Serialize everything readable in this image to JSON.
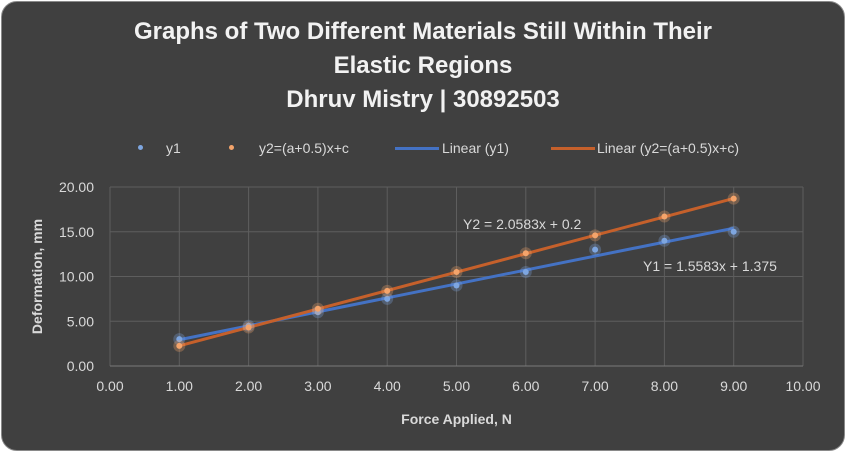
{
  "chart_data": {
    "type": "scatter",
    "title": [
      "Graphs of Two Different Materials Still Within Their",
      "Elastic Regions",
      "Dhruv Mistry | 30892503"
    ],
    "xlabel": "Force Applied, N",
    "ylabel": "Deformation, mm",
    "xlim": [
      0,
      10
    ],
    "ylim": [
      0,
      20
    ],
    "xticks": [
      "0.00",
      "1.00",
      "2.00",
      "3.00",
      "4.00",
      "5.00",
      "6.00",
      "7.00",
      "8.00",
      "9.00",
      "10.00"
    ],
    "yticks": [
      "0.00",
      "5.00",
      "10.00",
      "15.00",
      "20.00"
    ],
    "grid": true,
    "legend_position": "top",
    "x": [
      1,
      2,
      3,
      4,
      5,
      6,
      7,
      8,
      9
    ],
    "series": [
      {
        "name": "y1",
        "values": [
          3,
          4.5,
          6,
          7.5,
          9,
          10.5,
          13,
          14,
          15
        ],
        "color": "#7ea6e0"
      },
      {
        "name": "y2=(a+0.5)x+c",
        "values": [
          2.25,
          4.3,
          6.4,
          8.4,
          10.5,
          12.6,
          14.6,
          16.7,
          18.7
        ],
        "color": "#f4a46b"
      }
    ],
    "trendlines": [
      {
        "name": "Linear (y1)",
        "slope": 1.5583,
        "intercept": 1.375,
        "color": "#4472c4",
        "label": "Y1  = 1.5583x + 1.375"
      },
      {
        "name": "Linear (y2=(a+0.5)x+c)",
        "slope": 2.0583,
        "intercept": 0.2,
        "color": "#c5602b",
        "label": "Y2 = 2.0583x + 0.2"
      }
    ]
  },
  "colors": {
    "background": "#404040",
    "grid": "#5e5e5e",
    "text": "#d9d9d9"
  }
}
